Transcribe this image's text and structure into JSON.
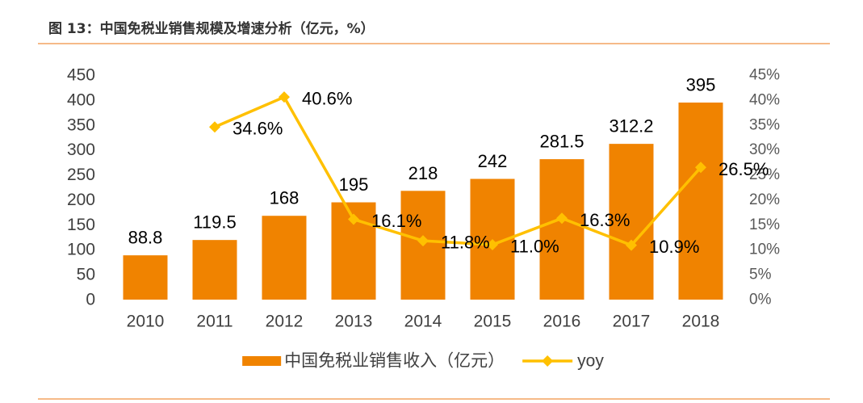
{
  "title": "图 13：中国免税业销售规模及增速分析（亿元，%）",
  "colors": {
    "bar": "#F08300",
    "line": "#FFC000",
    "rule": "#F4A460"
  },
  "chart_data": {
    "type": "bar",
    "title": "图 13：中国免税业销售规模及增速分析（亿元，%）",
    "categories": [
      "2010",
      "2011",
      "2012",
      "2013",
      "2014",
      "2015",
      "2016",
      "2017",
      "2018"
    ],
    "series": [
      {
        "name": "中国免税业销售收入（亿元）",
        "type": "bar",
        "values": [
          88.8,
          119.5,
          168,
          195,
          218,
          242,
          281.5,
          312.2,
          395
        ],
        "labels": [
          "88.8",
          "119.5",
          "168",
          "195",
          "218",
          "242",
          "281.5",
          "312.2",
          "395"
        ]
      },
      {
        "name": "yoy",
        "type": "line",
        "values": [
          null,
          34.6,
          40.6,
          16.1,
          11.8,
          11.0,
          16.3,
          10.9,
          26.5
        ],
        "labels": [
          "",
          "34.6%",
          "40.6%",
          "16.1%",
          "11.8%",
          "11.0%",
          "16.3%",
          "10.9%",
          "26.5%"
        ]
      }
    ],
    "ylim": [
      0,
      450
    ],
    "y2lim": [
      0,
      45
    ],
    "left_ticks": [
      "0",
      "50",
      "100",
      "150",
      "200",
      "250",
      "300",
      "350",
      "400",
      "450"
    ],
    "right_ticks": [
      "0%",
      "5%",
      "10%",
      "15%",
      "20%",
      "25%",
      "30%",
      "35%",
      "40%",
      "45%"
    ],
    "xlabel": "",
    "ylabel": "",
    "grid": false,
    "legend_position": "bottom"
  }
}
